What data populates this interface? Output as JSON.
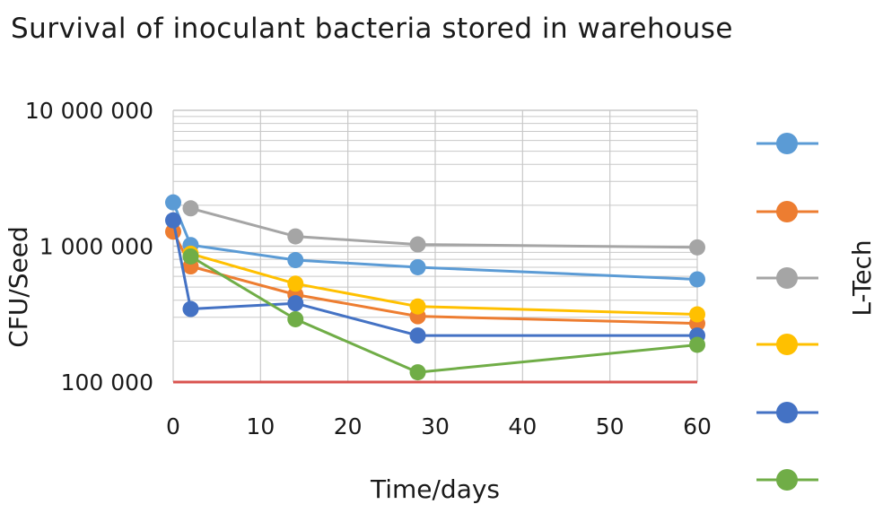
{
  "chart_data": {
    "type": "line",
    "title": "Survival of inoculant bacteria stored in warehouse",
    "xlabel": "Time/days",
    "ylabel": "CFU/Seed",
    "xlim": [
      0,
      60
    ],
    "ylim": [
      100000,
      10000000
    ],
    "y_scale": "log",
    "grid": true,
    "x_ticks": [
      {
        "value": 0,
        "label": "0"
      },
      {
        "value": 10,
        "label": "10"
      },
      {
        "value": 20,
        "label": "20"
      },
      {
        "value": 30,
        "label": "30"
      },
      {
        "value": 40,
        "label": "40"
      },
      {
        "value": 50,
        "label": "50"
      },
      {
        "value": 60,
        "label": "60"
      }
    ],
    "y_ticks": [
      {
        "value": 100000,
        "label": "100 000"
      },
      {
        "value": 1000000,
        "label": "1 000 000"
      },
      {
        "value": 10000000,
        "label": "10 000 000"
      }
    ],
    "legend_title": "L-Tech",
    "legend_position": "right",
    "series": [
      {
        "color": "#5b9bd5",
        "points": [
          [
            0,
            2100000
          ],
          [
            2,
            1020000
          ],
          [
            14,
            790000
          ],
          [
            28,
            700000
          ],
          [
            60,
            570000
          ]
        ]
      },
      {
        "color": "#ed7d31",
        "points": [
          [
            0,
            1280000
          ],
          [
            2,
            710000
          ],
          [
            14,
            440000
          ],
          [
            28,
            305000
          ],
          [
            60,
            270000
          ]
        ]
      },
      {
        "color": "#a5a5a5",
        "points": [
          [
            2,
            1900000
          ],
          [
            14,
            1180000
          ],
          [
            28,
            1030000
          ],
          [
            60,
            980000
          ]
        ]
      },
      {
        "color": "#ffc000",
        "points": [
          [
            2,
            880000
          ],
          [
            14,
            530000
          ],
          [
            28,
            360000
          ],
          [
            60,
            315000
          ]
        ]
      },
      {
        "color": "#4472c4",
        "points": [
          [
            0,
            1550000
          ],
          [
            2,
            345000
          ],
          [
            14,
            380000
          ],
          [
            28,
            220000
          ],
          [
            60,
            220000
          ]
        ]
      },
      {
        "color": "#70ad47",
        "points": [
          [
            2,
            840000
          ],
          [
            14,
            290000
          ],
          [
            28,
            118000
          ],
          [
            60,
            188000
          ]
        ]
      }
    ],
    "reference_line": {
      "value": 100000,
      "color": "#d9534f"
    }
  }
}
